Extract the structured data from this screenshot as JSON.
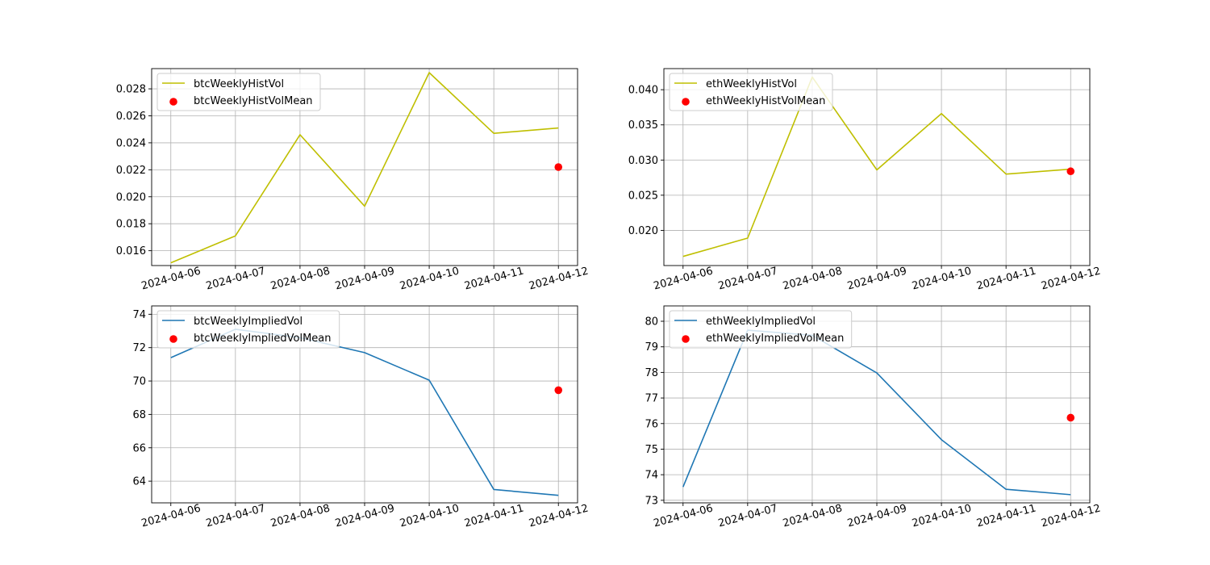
{
  "chart_data": [
    {
      "type": "line",
      "title": "",
      "xlabel": "",
      "ylabel": "",
      "x": [
        "2024-04-06",
        "2024-04-07",
        "2024-04-08",
        "2024-04-09",
        "2024-04-10",
        "2024-04-11",
        "2024-04-12"
      ],
      "series": [
        {
          "name": "btcWeeklyHistVol",
          "kind": "line",
          "color": "#bfbf00",
          "values": [
            0.0151,
            0.0171,
            0.0246,
            0.0193,
            0.0292,
            0.0247,
            0.0251
          ]
        },
        {
          "name": "btcWeeklyHistVolMean",
          "kind": "scatter",
          "color": "#ff0000",
          "points": [
            {
              "x": "2024-04-12",
              "y": 0.0222
            }
          ]
        }
      ],
      "ylim": [
        0.0149,
        0.0295
      ],
      "yticks": [
        0.016,
        0.018,
        0.02,
        0.022,
        0.024,
        0.026,
        0.028
      ],
      "ytick_labels": [
        "0.016",
        "0.018",
        "0.020",
        "0.022",
        "0.024",
        "0.026",
        "0.028"
      ],
      "grid": true,
      "legend": "upper-left"
    },
    {
      "type": "line",
      "title": "",
      "xlabel": "",
      "ylabel": "",
      "x": [
        "2024-04-06",
        "2024-04-07",
        "2024-04-08",
        "2024-04-09",
        "2024-04-10",
        "2024-04-11",
        "2024-04-12"
      ],
      "series": [
        {
          "name": "ethWeeklyHistVol",
          "kind": "line",
          "color": "#bfbf00",
          "values": [
            0.0163,
            0.0189,
            0.0418,
            0.0286,
            0.0366,
            0.028,
            0.0287
          ]
        },
        {
          "name": "ethWeeklyHistVolMean",
          "kind": "scatter",
          "color": "#ff0000",
          "points": [
            {
              "x": "2024-04-12",
              "y": 0.0284
            }
          ]
        }
      ],
      "ylim": [
        0.015,
        0.043
      ],
      "yticks": [
        0.02,
        0.025,
        0.03,
        0.035,
        0.04
      ],
      "ytick_labels": [
        "0.020",
        "0.025",
        "0.030",
        "0.035",
        "0.040"
      ],
      "grid": true,
      "legend": "upper-left"
    },
    {
      "type": "line",
      "title": "",
      "xlabel": "",
      "ylabel": "",
      "x": [
        "2024-04-06",
        "2024-04-07",
        "2024-04-08",
        "2024-04-09",
        "2024-04-10",
        "2024-04-11",
        "2024-04-12"
      ],
      "series": [
        {
          "name": "btcWeeklyImpliedVol",
          "kind": "line",
          "color": "#1f77b4",
          "values": [
            71.4,
            73.1,
            72.6,
            71.7,
            70.05,
            63.5,
            63.15
          ]
        },
        {
          "name": "btcWeeklyImpliedVolMean",
          "kind": "scatter",
          "color": "#ff0000",
          "points": [
            {
              "x": "2024-04-12",
              "y": 69.45
            }
          ]
        }
      ],
      "ylim": [
        62.7,
        74.5
      ],
      "yticks": [
        64,
        66,
        68,
        70,
        72,
        74
      ],
      "ytick_labels": [
        "64",
        "66",
        "68",
        "70",
        "72",
        "74"
      ],
      "grid": true,
      "legend": "upper-left"
    },
    {
      "type": "line",
      "title": "",
      "xlabel": "",
      "ylabel": "",
      "x": [
        "2024-04-06",
        "2024-04-07",
        "2024-04-08",
        "2024-04-09",
        "2024-04-10",
        "2024-04-11",
        "2024-04-12"
      ],
      "series": [
        {
          "name": "ethWeeklyImpliedVol",
          "kind": "line",
          "color": "#1f77b4",
          "values": [
            73.52,
            79.65,
            79.45,
            77.98,
            75.37,
            73.43,
            73.22
          ]
        },
        {
          "name": "ethWeeklyImpliedVolMean",
          "kind": "scatter",
          "color": "#ff0000",
          "points": [
            {
              "x": "2024-04-12",
              "y": 76.23
            }
          ]
        }
      ],
      "ylim": [
        72.9,
        80.6
      ],
      "yticks": [
        73,
        74,
        75,
        76,
        77,
        78,
        79,
        80
      ],
      "ytick_labels": [
        "73",
        "74",
        "75",
        "76",
        "77",
        "78",
        "79",
        "80"
      ],
      "grid": true,
      "legend": "upper-left"
    }
  ]
}
